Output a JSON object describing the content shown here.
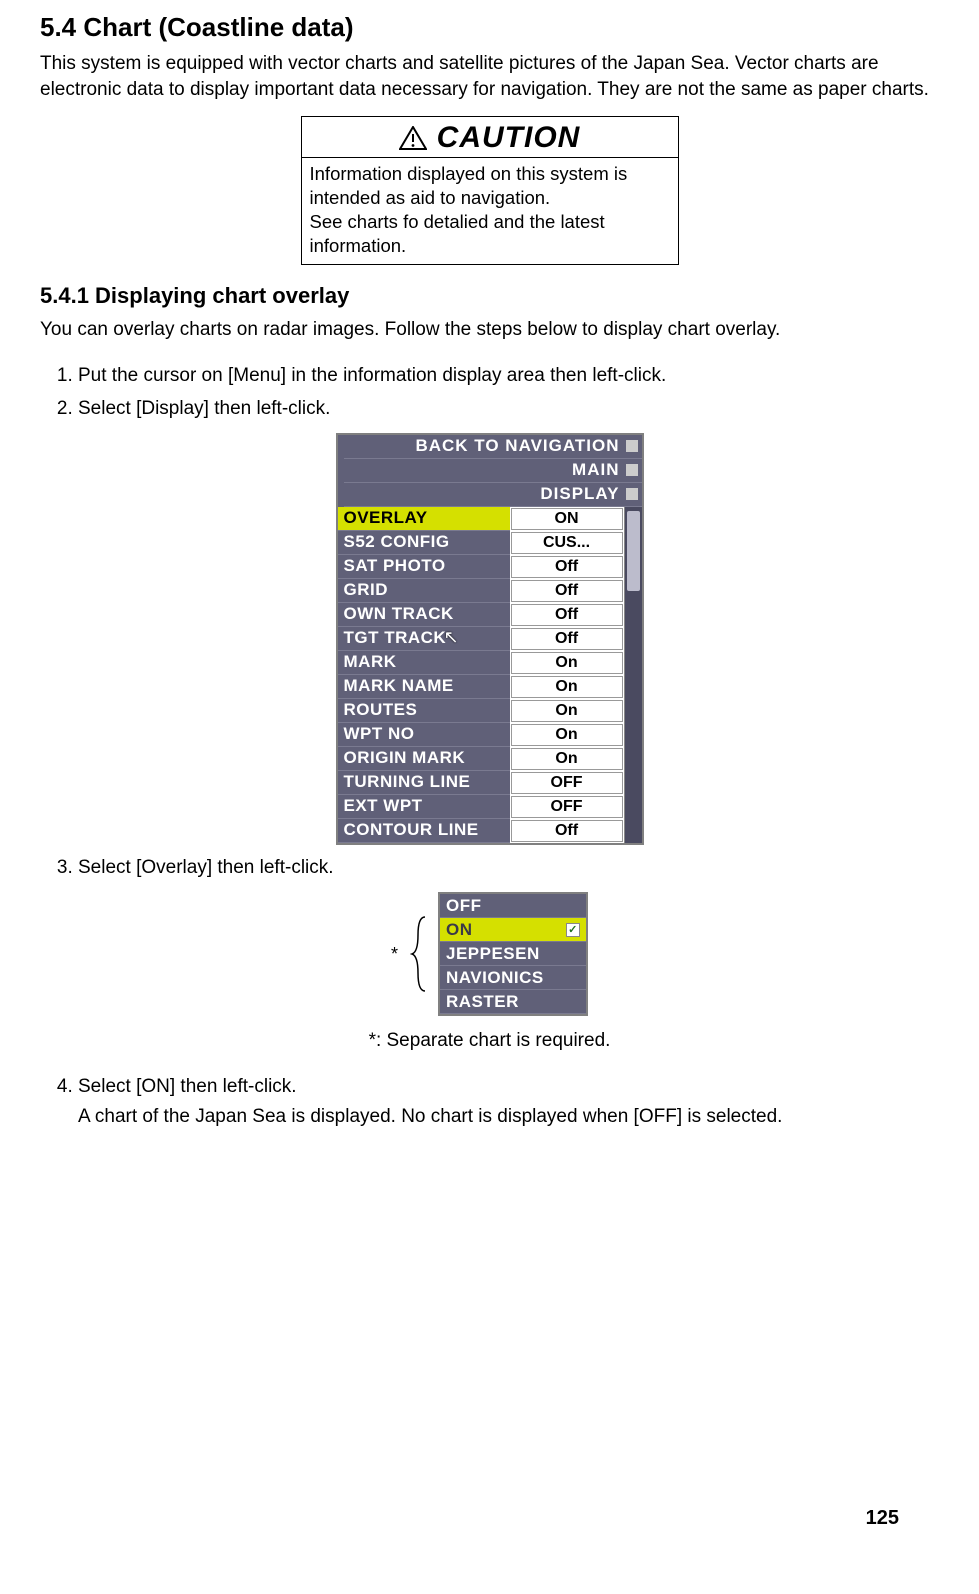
{
  "section_heading": "5.4  Chart (Coastline data)",
  "intro": "This system is equipped with vector charts and satellite pictures of the Japan Sea. Vector charts are electronic data to display important data necessary for navigation. They are not the same as paper charts.",
  "caution": {
    "title": "CAUTION",
    "body_line1": "Information displayed on this system is intended as aid to navigation.",
    "body_line2": "See charts fo detalied and the latest information."
  },
  "subsection_heading": "5.4.1 Displaying chart overlay",
  "subsection_intro": "You can overlay charts on radar images. Follow the steps below to display chart overlay.",
  "steps": {
    "s1": "Put the cursor on [Menu] in the information display area then left-click.",
    "s2": "Select [Display] then left-click.",
    "s3": "Select [Overlay] then left-click.",
    "s4": "Select [ON] then left-click.",
    "s4_sub": "A chart of the Japan Sea is displayed. No chart is displayed when [OFF] is selected."
  },
  "menu": {
    "top": [
      {
        "label": "BACK TO NAVIGATION"
      },
      {
        "label": "MAIN"
      },
      {
        "label": "DISPLAY"
      }
    ],
    "rows": [
      {
        "label": "OVERLAY",
        "value": "ON",
        "highlight": true
      },
      {
        "label": "S52 CONFIG",
        "value": "CUS..."
      },
      {
        "label": "SAT PHOTO",
        "value": "Off"
      },
      {
        "label": "GRID",
        "value": "Off"
      },
      {
        "label": "OWN TRACK",
        "value": "Off"
      },
      {
        "label": "TGT TRACK",
        "value": "Off"
      },
      {
        "label": "MARK",
        "value": "On"
      },
      {
        "label": "MARK NAME",
        "value": "On"
      },
      {
        "label": "ROUTES",
        "value": "On"
      },
      {
        "label": "WPT NO",
        "value": "On"
      },
      {
        "label": "ORIGIN MARK",
        "value": "On"
      },
      {
        "label": "TURNING LINE",
        "value": "OFF"
      },
      {
        "label": "EXT WPT",
        "value": "OFF"
      },
      {
        "label": "CONTOUR LINE",
        "value": "Off"
      }
    ],
    "colors": {
      "panel_bg": "#606078",
      "highlight_bg": "#d5e000",
      "value_bg": "#ffffff",
      "text_light": "#ffffff",
      "text_dark": "#000000",
      "border": "#808080"
    }
  },
  "overlay_menu": {
    "options": [
      {
        "label": "OFF",
        "state": "normal"
      },
      {
        "label": "ON",
        "state": "on",
        "checked": true
      },
      {
        "label": "JEPPESEN",
        "state": "normal"
      },
      {
        "label": "NAVIONICS",
        "state": "normal"
      },
      {
        "label": "RASTER",
        "state": "normal"
      }
    ],
    "asterisk": "*",
    "note": "*: Separate chart is required."
  },
  "page_number": "125"
}
